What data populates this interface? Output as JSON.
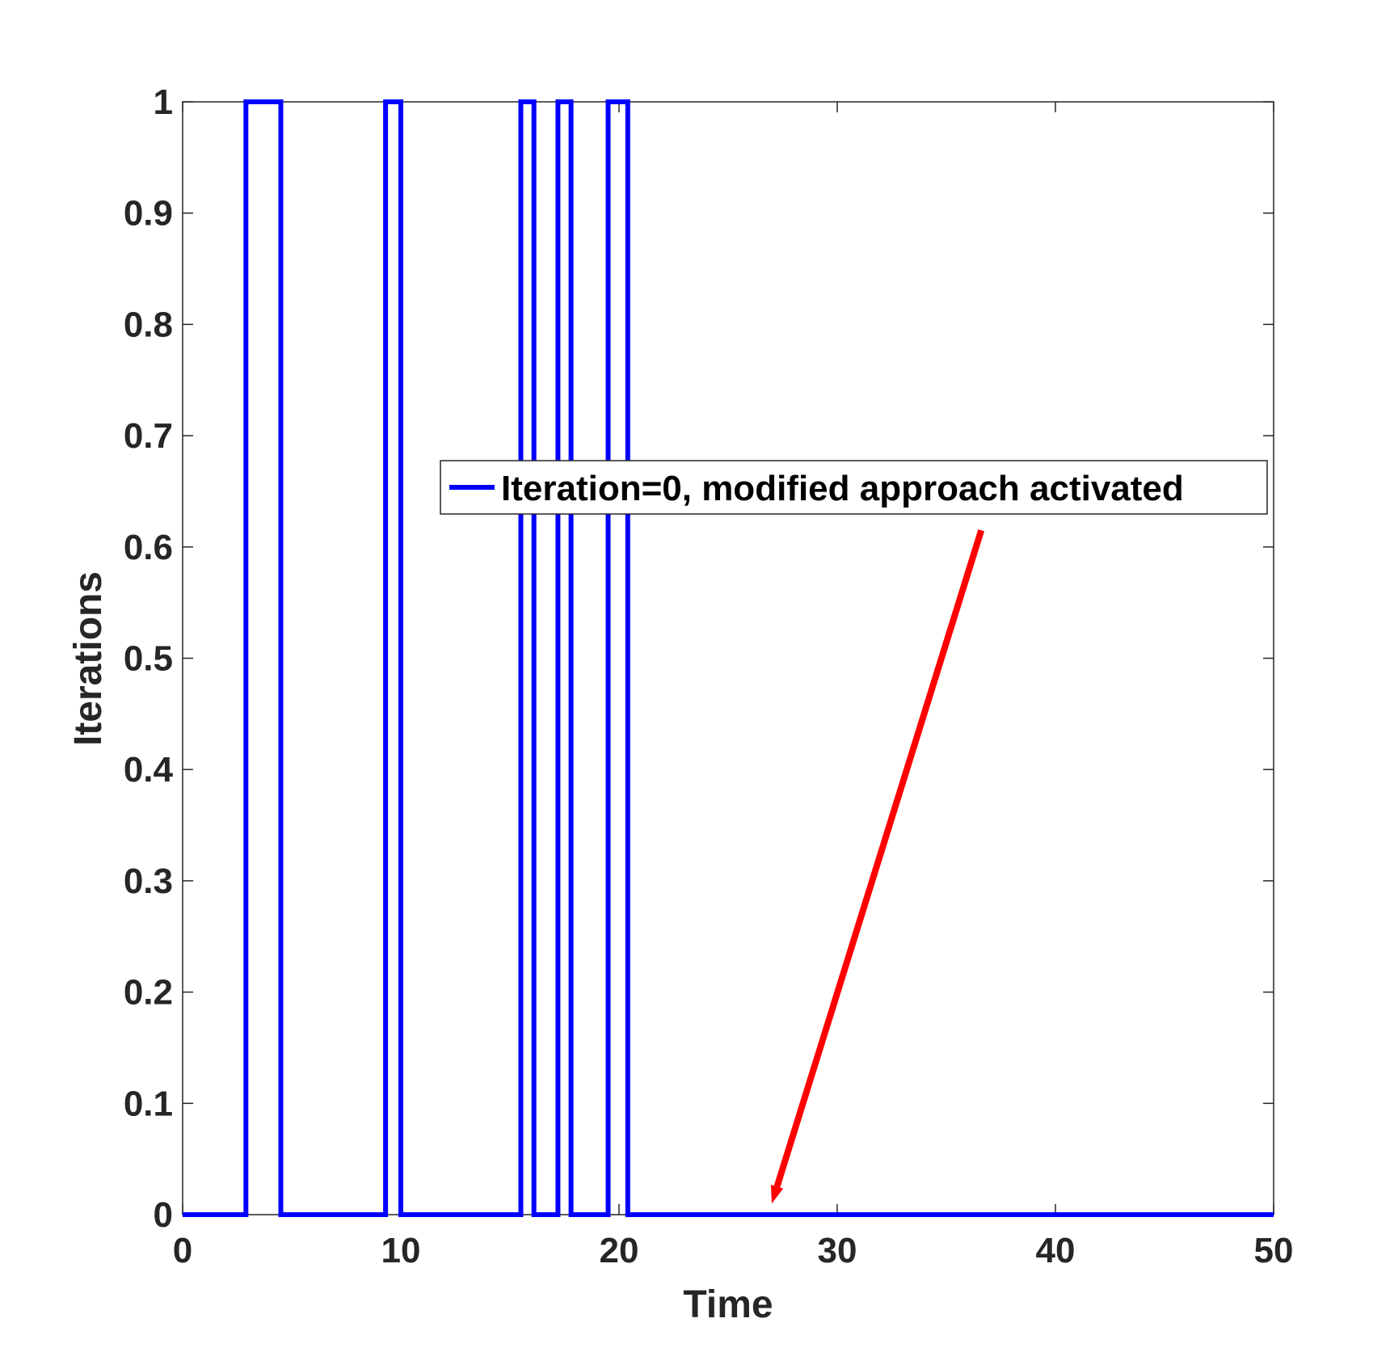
{
  "chart_data": {
    "type": "line",
    "xlabel": "Time",
    "ylabel": "Iterations",
    "xlim": [
      0,
      50
    ],
    "ylim": [
      0,
      1
    ],
    "xticks": [
      "0",
      "10",
      "20",
      "30",
      "40",
      "50"
    ],
    "yticks": [
      "0",
      "0.1",
      "0.2",
      "0.3",
      "0.4",
      "0.5",
      "0.6",
      "0.7",
      "0.8",
      "0.9",
      "1"
    ],
    "grid": false,
    "legend_position": "center-right",
    "series": [
      {
        "name": "Iteration=0, modified approach activated",
        "color": "#0000ff",
        "step": true,
        "x": [
          0,
          2.9,
          2.9,
          4.5,
          4.5,
          9.3,
          9.3,
          10.0,
          10.0,
          15.5,
          15.5,
          16.1,
          16.1,
          17.2,
          17.2,
          17.8,
          17.8,
          19.5,
          19.5,
          20.4,
          20.4,
          50
        ],
        "y": [
          0,
          0,
          1,
          1,
          0,
          0,
          1,
          1,
          0,
          0,
          1,
          1,
          0,
          0,
          1,
          1,
          0,
          0,
          1,
          1,
          0,
          0
        ]
      }
    ],
    "annotations": [
      {
        "type": "arrow",
        "color": "#ff0000",
        "from": [
          36.6,
          0.615
        ],
        "to": [
          27.0,
          0.01
        ]
      }
    ]
  }
}
